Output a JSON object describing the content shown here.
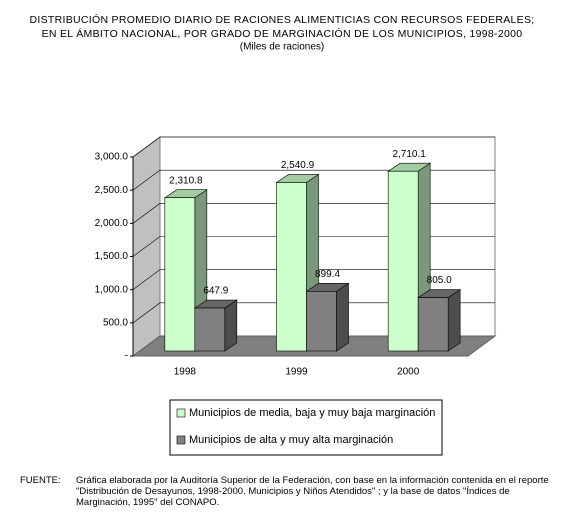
{
  "chart_data": {
    "type": "bar3d",
    "title": [
      "DISTRIBUCIÓN  PROMEDIO DIARIO DE RACIONES ALIMENTICIAS CON RECURSOS FEDERALES;",
      "EN EL ÁMBITO NACIONAL, POR GRADO DE MARGINACIÓN DE LOS MUNICIPIOS, 1998-2000"
    ],
    "subtitle": "(Miles de raciones)",
    "categories": [
      "1998",
      "1999",
      "2000"
    ],
    "series": [
      {
        "name": "Municipios de media, baja y muy baja marginación",
        "color": "#ccffcc",
        "values": [
          2310.8,
          2540.9,
          2710.1
        ],
        "value_labels": [
          "2,310.8",
          "2,540.9",
          "2,710.1"
        ]
      },
      {
        "name": "Municipios de alta y muy alta marginación",
        "color": "#808080",
        "values": [
          647.9,
          899.4,
          805.0
        ],
        "value_labels": [
          "647.9",
          "899.4",
          "805.0"
        ]
      }
    ],
    "ylim": [
      0,
      3000
    ],
    "yticks": [
      {
        "value": 0,
        "label": "-"
      },
      {
        "value": 500,
        "label": "500.0"
      },
      {
        "value": 1000,
        "label": "1,000.0"
      },
      {
        "value": 1500,
        "label": "1,500.0"
      },
      {
        "value": 2000,
        "label": "2,000.0"
      },
      {
        "value": 2500,
        "label": "2,500.0"
      },
      {
        "value": 3000,
        "label": "3,000.0"
      }
    ],
    "grid": true,
    "source_label": "FUENTE:",
    "source": "Gráfica elaborada por la Auditoría Superior de la Federación, con base en la información contenida en el reporte \"Distribución de Desayunos, 1998-2000. Municipios y Niños Atendidos\" ; y la base de datos \"Índices de Marginación, 1995\" del CONAPO."
  }
}
